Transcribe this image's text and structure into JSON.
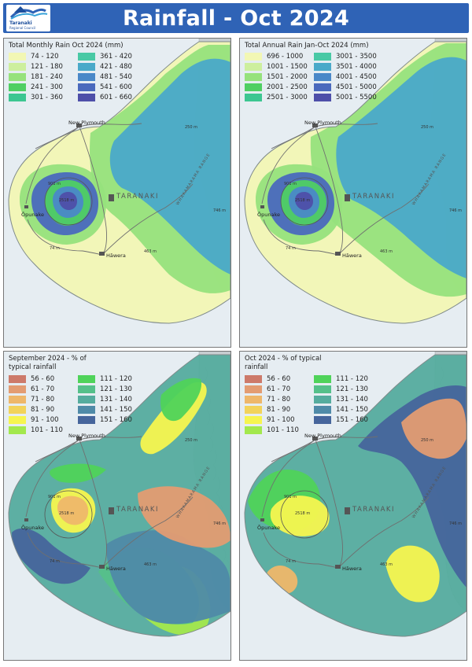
{
  "header": {
    "title": "Rainfall - Oct 2024",
    "logo_line1": "Taranaki",
    "logo_line2": "Regional Council"
  },
  "map_labels": {
    "town_new_plymouth": "New Plymouth",
    "town_opunake": "Ōpunake",
    "town_hawera": "Hāwera",
    "region": "TARANAKI",
    "range": "WHAKAMARAMA RANGE",
    "elev_peak": "2518 m",
    "elev_901": "901 m",
    "elev_250": "250 m",
    "elev_74": "74 m",
    "elev_463": "463 m",
    "elev_746": "746 m"
  },
  "panels": [
    {
      "legend_title": "Total Monthly Rain Oct 2024 (mm)",
      "legend": [
        {
          "label": "74 - 120",
          "color": "#f2f7b4"
        },
        {
          "label": "361 - 420",
          "color": "#48c9a5"
        },
        {
          "label": "121 - 180",
          "color": "#cdef9e"
        },
        {
          "label": "421 - 480",
          "color": "#4aa9c9"
        },
        {
          "label": "181 - 240",
          "color": "#96e27c"
        },
        {
          "label": "481 - 540",
          "color": "#4a88c8"
        },
        {
          "label": "241 - 300",
          "color": "#4fcf63"
        },
        {
          "label": "541 - 600",
          "color": "#4a69bd"
        },
        {
          "label": "301 - 360",
          "color": "#3cc691"
        },
        {
          "label": "601 - 660",
          "color": "#4e4fa9"
        }
      ]
    },
    {
      "legend_title": "Total Annual Rain Jan-Oct 2024 (mm)",
      "legend": [
        {
          "label": "696 - 1000",
          "color": "#f2f7b4"
        },
        {
          "label": "3001 - 3500",
          "color": "#48c9a5"
        },
        {
          "label": "1001 - 1500",
          "color": "#cdef9e"
        },
        {
          "label": "3501 - 4000",
          "color": "#4aa9c9"
        },
        {
          "label": "1501 - 2000",
          "color": "#96e27c"
        },
        {
          "label": "4001 - 4500",
          "color": "#4a88c8"
        },
        {
          "label": "2001 - 2500",
          "color": "#4fcf63"
        },
        {
          "label": "4501 - 5000",
          "color": "#4a69bd"
        },
        {
          "label": "2501 - 3000",
          "color": "#3cc691"
        },
        {
          "label": "5001 - 5500",
          "color": "#4e4fa9"
        }
      ]
    },
    {
      "legend_title": "September 2024 - % of typical rainfall",
      "legend": [
        {
          "label": "56 - 60",
          "color": "#cd7a6a"
        },
        {
          "label": "111 - 120",
          "color": "#4fd35a"
        },
        {
          "label": "61 - 70",
          "color": "#e39c72"
        },
        {
          "label": "121 - 130",
          "color": "#55c08a"
        },
        {
          "label": "71 - 80",
          "color": "#eeb76a"
        },
        {
          "label": "131 - 140",
          "color": "#55ac9e"
        },
        {
          "label": "81 - 90",
          "color": "#f2d35a"
        },
        {
          "label": "141 - 150",
          "color": "#4f8aa8"
        },
        {
          "label": "91 - 100",
          "color": "#f6f54f"
        },
        {
          "label": "151 - 160",
          "color": "#46659c"
        },
        {
          "label": "101 - 110",
          "color": "#a3e84d"
        }
      ]
    },
    {
      "legend_title": "Oct 2024 - % of typical rainfall",
      "legend": [
        {
          "label": "56 - 60",
          "color": "#cd7a6a"
        },
        {
          "label": "111 - 120",
          "color": "#4fd35a"
        },
        {
          "label": "61 - 70",
          "color": "#e39c72"
        },
        {
          "label": "121 - 130",
          "color": "#55c08a"
        },
        {
          "label": "71 - 80",
          "color": "#eeb76a"
        },
        {
          "label": "131 - 140",
          "color": "#55ac9e"
        },
        {
          "label": "81 - 90",
          "color": "#f2d35a"
        },
        {
          "label": "141 - 150",
          "color": "#4f8aa8"
        },
        {
          "label": "91 - 100",
          "color": "#f6f54f"
        },
        {
          "label": "151 - 160",
          "color": "#46659c"
        },
        {
          "label": "101 - 110",
          "color": "#a3e84d"
        }
      ]
    }
  ]
}
